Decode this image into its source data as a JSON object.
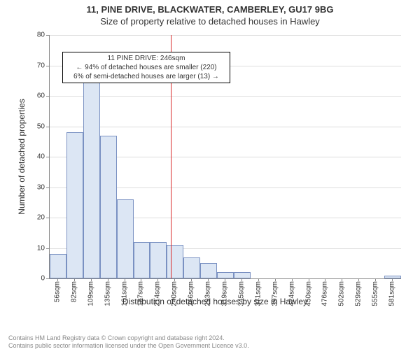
{
  "title": "11, PINE DRIVE, BLACKWATER, CAMBERLEY, GU17 9BG",
  "subtitle": "Size of property relative to detached houses in Hawley",
  "chart": {
    "type": "histogram",
    "y_label": "Number of detached properties",
    "x_label": "Distribution of detached houses by size in Hawley",
    "ylim": [
      0,
      80
    ],
    "ytick_step": 10,
    "x_categories": [
      "56sqm",
      "82sqm",
      "109sqm",
      "135sqm",
      "161sqm",
      "187sqm",
      "214sqm",
      "240sqm",
      "266sqm",
      "293sqm",
      "319sqm",
      "345sqm",
      "371sqm",
      "397sqm",
      "424sqm",
      "450sqm",
      "476sqm",
      "502sqm",
      "529sqm",
      "555sqm",
      "581sqm"
    ],
    "values": [
      8,
      48,
      65,
      47,
      26,
      12,
      12,
      11,
      7,
      5,
      2,
      2,
      0,
      0,
      0,
      0,
      0,
      0,
      0,
      0,
      1
    ],
    "bar_color": "#dce6f4",
    "bar_border": "#7a91c2",
    "grid_color": "#dddddd",
    "axis_color": "#888888",
    "background_color": "#ffffff",
    "reference_line": {
      "value": 246,
      "color": "#d92a2a",
      "position_index": 7.23
    },
    "annotation": {
      "title": "11 PINE DRIVE: 246sqm",
      "line1": "← 94% of detached houses are smaller (220)",
      "line2": "6% of semi-detached houses are larger (13) →",
      "border_color": "#000000"
    }
  },
  "footer": {
    "line1": "Contains HM Land Registry data © Crown copyright and database right 2024.",
    "line2": "Contains public sector information licensed under the Open Government Licence v3.0."
  }
}
